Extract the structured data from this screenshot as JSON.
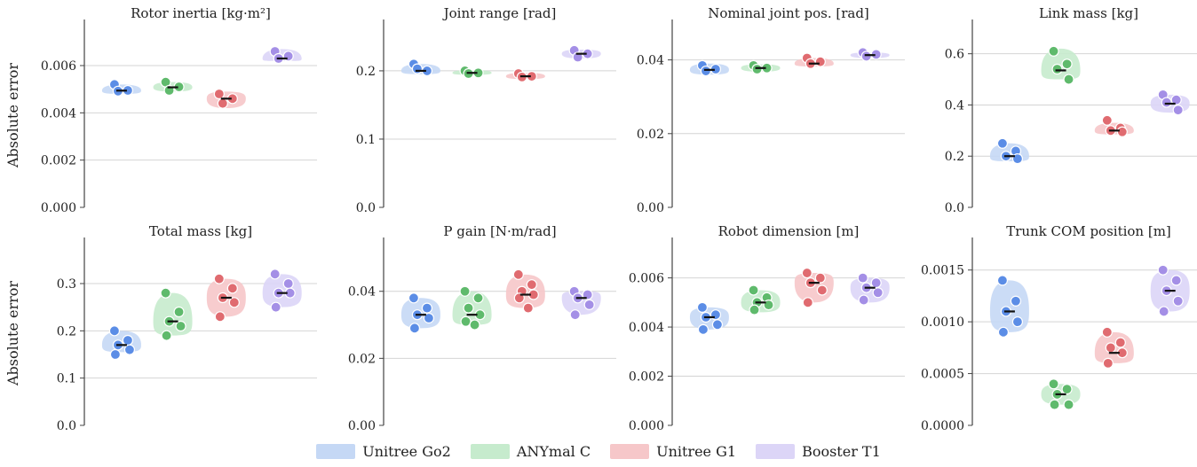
{
  "robots": [
    {
      "name": "Unitree Go2",
      "fill": "#c5d8f5",
      "point": "#5b8de6"
    },
    {
      "name": "ANYmal C",
      "fill": "#c6ebcd",
      "point": "#5fba6c"
    },
    {
      "name": "Unitree G1",
      "fill": "#f6c7c9",
      "point": "#e06b70"
    },
    {
      "name": "Booster T1",
      "fill": "#dcd5f7",
      "point": "#a48fe6"
    }
  ],
  "ylabel": "Absolute error",
  "chart_data": [
    {
      "type": "violin",
      "title": "Rotor inertia [kg·m²]",
      "ylim": [
        0,
        0.0078
      ],
      "yticks": [
        "0.000",
        "0.002",
        "0.004",
        "0.006"
      ],
      "ytick_values": [
        0,
        0.002,
        0.004,
        0.006
      ],
      "show_ylabel": true,
      "series": [
        {
          "name": "Unitree Go2",
          "points": [
            0.0052,
            0.00495,
            0.00492
          ],
          "median": 0.00494,
          "range": [
            0.0048,
            0.0052
          ]
        },
        {
          "name": "ANYmal C",
          "points": [
            0.0053,
            0.0051,
            0.00495
          ],
          "median": 0.00508,
          "range": [
            0.0049,
            0.0053
          ]
        },
        {
          "name": "Unitree G1",
          "points": [
            0.0048,
            0.0046,
            0.0044
          ],
          "median": 0.0046,
          "range": [
            0.0042,
            0.0049
          ]
        },
        {
          "name": "Booster T1",
          "points": [
            0.0066,
            0.0064,
            0.0063
          ],
          "median": 0.0063,
          "range": [
            0.0062,
            0.0067
          ]
        }
      ]
    },
    {
      "type": "violin",
      "title": "Joint range [rad]",
      "ylim": [
        0,
        0.27
      ],
      "yticks": [
        "0.0",
        "0.1",
        "0.2"
      ],
      "ytick_values": [
        0,
        0.1,
        0.2
      ],
      "show_ylabel": false,
      "series": [
        {
          "name": "Unitree Go2",
          "points": [
            0.21,
            0.2,
            0.203
          ],
          "median": 0.2,
          "range": [
            0.195,
            0.21
          ]
        },
        {
          "name": "ANYmal C",
          "points": [
            0.2,
            0.197,
            0.196
          ],
          "median": 0.197,
          "range": [
            0.194,
            0.201
          ]
        },
        {
          "name": "Unitree G1",
          "points": [
            0.196,
            0.192,
            0.191
          ],
          "median": 0.192,
          "range": [
            0.188,
            0.197
          ]
        },
        {
          "name": "Booster T1",
          "points": [
            0.23,
            0.225,
            0.22
          ],
          "median": 0.225,
          "range": [
            0.218,
            0.231
          ]
        }
      ]
    },
    {
      "type": "violin",
      "title": "Nominal joint pos. [rad]",
      "ylim": [
        0,
        0.05
      ],
      "yticks": [
        "0.00",
        "0.02",
        "0.04"
      ],
      "ytick_values": [
        0,
        0.02,
        0.04
      ],
      "show_ylabel": false,
      "series": [
        {
          "name": "Unitree Go2",
          "points": [
            0.0385,
            0.0375,
            0.037
          ],
          "median": 0.0373,
          "range": [
            0.036,
            0.039
          ]
        },
        {
          "name": "ANYmal C",
          "points": [
            0.0385,
            0.0378,
            0.0375
          ],
          "median": 0.0378,
          "range": [
            0.0368,
            0.0388
          ]
        },
        {
          "name": "Unitree G1",
          "points": [
            0.0405,
            0.0395,
            0.039
          ],
          "median": 0.039,
          "range": [
            0.0382,
            0.0405
          ]
        },
        {
          "name": "Booster T1",
          "points": [
            0.042,
            0.0415,
            0.041
          ],
          "median": 0.0413,
          "range": [
            0.0405,
            0.042
          ]
        }
      ]
    },
    {
      "type": "violin",
      "title": "Link mass [kg]",
      "ylim": [
        0,
        0.72
      ],
      "yticks": [
        "0.0",
        "0.2",
        "0.4",
        "0.6"
      ],
      "ytick_values": [
        0,
        0.2,
        0.4,
        0.6
      ],
      "show_ylabel": false,
      "series": [
        {
          "name": "Unitree Go2",
          "points": [
            0.25,
            0.22,
            0.2,
            0.19
          ],
          "median": 0.2,
          "range": [
            0.18,
            0.25
          ]
        },
        {
          "name": "ANYmal C",
          "points": [
            0.61,
            0.56,
            0.54,
            0.5
          ],
          "median": 0.535,
          "range": [
            0.5,
            0.62
          ]
        },
        {
          "name": "Unitree G1",
          "points": [
            0.34,
            0.31,
            0.3,
            0.295
          ],
          "median": 0.3,
          "range": [
            0.285,
            0.33
          ]
        },
        {
          "name": "Booster T1",
          "points": [
            0.44,
            0.42,
            0.41,
            0.38
          ],
          "median": 0.405,
          "range": [
            0.37,
            0.44
          ]
        }
      ]
    },
    {
      "type": "violin",
      "title": "Total mass [kg]",
      "ylim": [
        0,
        0.39
      ],
      "yticks": [
        "0.0",
        "0.1",
        "0.2",
        "0.3"
      ],
      "ytick_values": [
        0,
        0.1,
        0.2,
        0.3
      ],
      "show_ylabel": true,
      "series": [
        {
          "name": "Unitree Go2",
          "points": [
            0.2,
            0.18,
            0.17,
            0.16,
            0.15
          ],
          "median": 0.17,
          "range": [
            0.155,
            0.2
          ]
        },
        {
          "name": "ANYmal C",
          "points": [
            0.28,
            0.24,
            0.22,
            0.21,
            0.19
          ],
          "median": 0.22,
          "range": [
            0.19,
            0.28
          ]
        },
        {
          "name": "Unitree G1",
          "points": [
            0.31,
            0.29,
            0.27,
            0.26,
            0.23
          ],
          "median": 0.27,
          "range": [
            0.23,
            0.31
          ]
        },
        {
          "name": "Booster T1",
          "points": [
            0.32,
            0.3,
            0.28,
            0.28,
            0.25
          ],
          "median": 0.28,
          "range": [
            0.25,
            0.32
          ]
        }
      ]
    },
    {
      "type": "violin",
      "title": "P gain [N·m/rad]",
      "ylim": [
        0,
        0.055
      ],
      "yticks": [
        "0.00",
        "0.02",
        "0.04"
      ],
      "ytick_values": [
        0,
        0.02,
        0.04
      ],
      "show_ylabel": false,
      "series": [
        {
          "name": "Unitree Go2",
          "points": [
            0.038,
            0.035,
            0.033,
            0.032,
            0.029
          ],
          "median": 0.033,
          "range": [
            0.029,
            0.038
          ]
        },
        {
          "name": "ANYmal C",
          "points": [
            0.04,
            0.038,
            0.035,
            0.033,
            0.031,
            0.03
          ],
          "median": 0.033,
          "range": [
            0.03,
            0.04
          ]
        },
        {
          "name": "Unitree G1",
          "points": [
            0.045,
            0.042,
            0.04,
            0.039,
            0.038,
            0.035
          ],
          "median": 0.039,
          "range": [
            0.035,
            0.045
          ]
        },
        {
          "name": "Booster T1",
          "points": [
            0.04,
            0.039,
            0.038,
            0.036,
            0.033
          ],
          "median": 0.038,
          "range": [
            0.033,
            0.04
          ]
        }
      ]
    },
    {
      "type": "violin",
      "title": "Robot dimension [m]",
      "ylim": [
        0,
        0.0075
      ],
      "yticks": [
        "0.000",
        "0.002",
        "0.004",
        "0.006"
      ],
      "ytick_values": [
        0,
        0.002,
        0.004,
        0.006
      ],
      "show_ylabel": false,
      "series": [
        {
          "name": "Unitree Go2",
          "points": [
            0.0048,
            0.0045,
            0.0044,
            0.0041,
            0.0039
          ],
          "median": 0.0044,
          "range": [
            0.0039,
            0.0048
          ]
        },
        {
          "name": "ANYmal C",
          "points": [
            0.0055,
            0.0052,
            0.005,
            0.0049,
            0.0047
          ],
          "median": 0.005,
          "range": [
            0.0046,
            0.0055
          ]
        },
        {
          "name": "Unitree G1",
          "points": [
            0.0062,
            0.006,
            0.0058,
            0.0055,
            0.005
          ],
          "median": 0.0058,
          "range": [
            0.005,
            0.0062
          ]
        },
        {
          "name": "Booster T1",
          "points": [
            0.006,
            0.0058,
            0.0056,
            0.0054,
            0.0051
          ],
          "median": 0.0056,
          "range": [
            0.005,
            0.006
          ]
        }
      ]
    },
    {
      "type": "violin",
      "title": "Trunk COM position [m]",
      "ylim": [
        0,
        0.00178
      ],
      "yticks": [
        "0.0000",
        "0.0005",
        "0.0010",
        "0.0015"
      ],
      "ytick_values": [
        0,
        0.0005,
        0.001,
        0.0015
      ],
      "show_ylabel": false,
      "series": [
        {
          "name": "Unitree Go2",
          "points": [
            0.0014,
            0.0012,
            0.0011,
            0.001,
            0.0009
          ],
          "median": 0.0011,
          "range": [
            0.0009,
            0.0014
          ]
        },
        {
          "name": "ANYmal C",
          "points": [
            0.0004,
            0.00035,
            0.0003,
            0.0002,
            0.0002
          ],
          "median": 0.0003,
          "range": [
            0.0002,
            0.0004
          ]
        },
        {
          "name": "Unitree G1",
          "points": [
            0.0009,
            0.0008,
            0.00075,
            0.0007,
            0.0006
          ],
          "median": 0.0007,
          "range": [
            0.0006,
            0.0009
          ]
        },
        {
          "name": "Booster T1",
          "points": [
            0.0015,
            0.0014,
            0.0013,
            0.0012,
            0.0011
          ],
          "median": 0.0013,
          "range": [
            0.0011,
            0.0015
          ]
        }
      ]
    }
  ]
}
